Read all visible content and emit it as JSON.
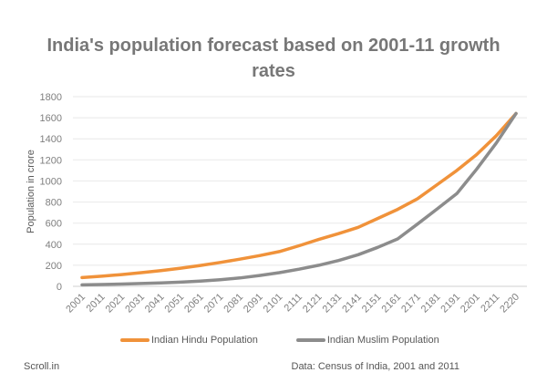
{
  "chart_data": {
    "type": "line",
    "title": "India's population forecast based on 2001-11 growth rates",
    "xlabel": "",
    "ylabel": "Population in crore",
    "ylim": [
      0,
      1800
    ],
    "yticks": [
      0,
      200,
      400,
      600,
      800,
      1000,
      1200,
      1400,
      1600,
      1800
    ],
    "grid": true,
    "legend_position": "bottom",
    "categories": [
      "2001",
      "2011",
      "2021",
      "2031",
      "2041",
      "2051",
      "2061",
      "2071",
      "2081",
      "2091",
      "2101",
      "2111",
      "2121",
      "2131",
      "2141",
      "2151",
      "2161",
      "2171",
      "2181",
      "2191",
      "2201",
      "2211",
      "2220"
    ],
    "series": [
      {
        "name": "Indian Hindu Population",
        "color": "#F0923A",
        "values": [
          83,
          96,
          112,
          130,
          150,
          172,
          198,
          227,
          258,
          292,
          330,
          385,
          445,
          500,
          560,
          645,
          730,
          830,
          965,
          1100,
          1250,
          1430,
          1640
        ]
      },
      {
        "name": "Indian Muslim Population",
        "color": "#8C8C8C",
        "values": [
          14,
          17,
          22,
          27,
          33,
          40,
          50,
          63,
          80,
          103,
          130,
          163,
          200,
          245,
          300,
          370,
          450,
          590,
          735,
          880,
          1110,
          1360,
          1640
        ]
      }
    ]
  },
  "footer": {
    "source_left": "Scroll.in",
    "source_right": "Data: Census of India, 2001 and 2011"
  }
}
